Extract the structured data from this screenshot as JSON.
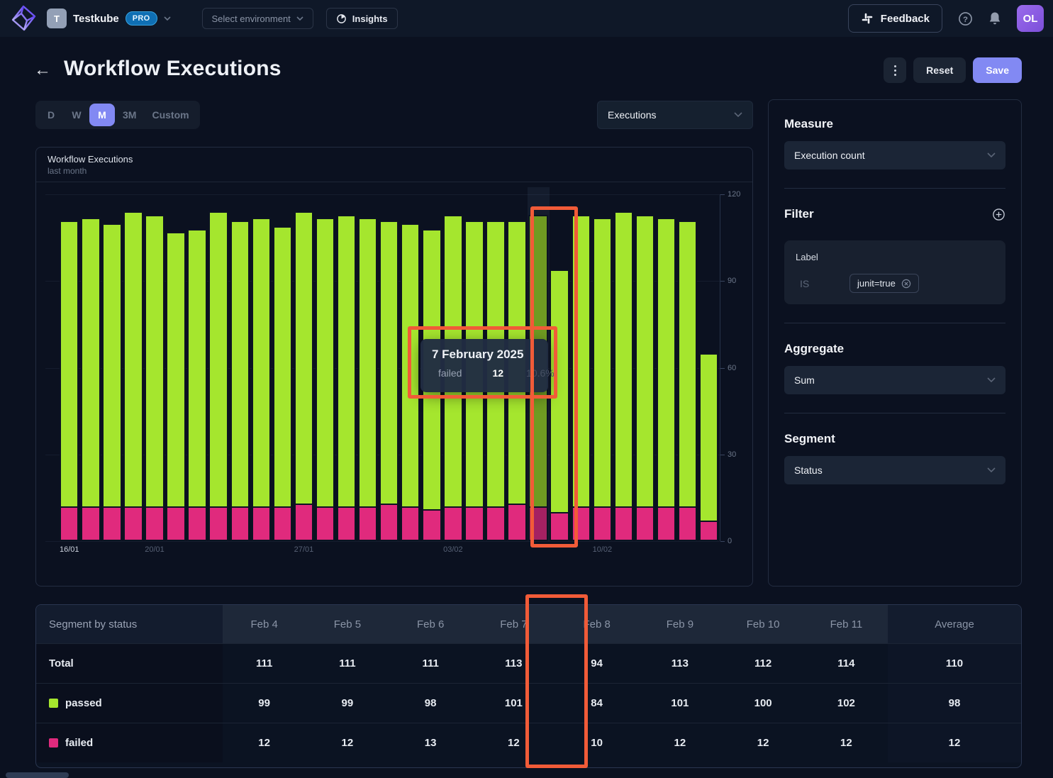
{
  "topbar": {
    "org": {
      "avatar_initial": "T",
      "name": "Testkube",
      "badge": "PRO"
    },
    "env_select": "Select environment",
    "insights": "Insights",
    "feedback": "Feedback",
    "user_initials": "OL"
  },
  "header": {
    "title": "Workflow Executions",
    "reset": "Reset",
    "save": "Save"
  },
  "controls": {
    "ranges": [
      "D",
      "W",
      "M",
      "3M",
      "Custom"
    ],
    "active_range": "M",
    "metric_select": "Executions"
  },
  "chart_panel": {
    "title": "Workflow Executions",
    "subtitle": "last month"
  },
  "chart_data": {
    "type": "bar",
    "stacked": true,
    "title": "Workflow Executions",
    "subtitle": "last month",
    "series_names": [
      "failed",
      "passed"
    ],
    "colors": {
      "passed": "#a5e62e",
      "failed": "#e02a7d",
      "passed_hover": "#6f9b22",
      "failed_hover": "#a52162"
    },
    "ylim": [
      0,
      120
    ],
    "yticks": [
      0,
      30,
      60,
      90,
      120
    ],
    "xticks": [
      {
        "label": "16/01",
        "index": 0
      },
      {
        "label": "20/01",
        "index": 4
      },
      {
        "label": "27/01",
        "index": 11
      },
      {
        "label": "03/02",
        "index": 18
      },
      {
        "label": "10/02",
        "index": 25
      }
    ],
    "highlight_index": 22,
    "bars": [
      {
        "date": "16/01",
        "failed": 12,
        "passed": 99
      },
      {
        "date": "17/01",
        "failed": 12,
        "passed": 100
      },
      {
        "date": "18/01",
        "failed": 12,
        "passed": 98
      },
      {
        "date": "19/01",
        "failed": 12,
        "passed": 102
      },
      {
        "date": "20/01",
        "failed": 12,
        "passed": 101
      },
      {
        "date": "21/01",
        "failed": 12,
        "passed": 95
      },
      {
        "date": "22/01",
        "failed": 12,
        "passed": 96
      },
      {
        "date": "23/01",
        "failed": 12,
        "passed": 102
      },
      {
        "date": "24/01",
        "failed": 12,
        "passed": 99
      },
      {
        "date": "25/01",
        "failed": 12,
        "passed": 100
      },
      {
        "date": "26/01",
        "failed": 12,
        "passed": 97
      },
      {
        "date": "27/01",
        "failed": 13,
        "passed": 101
      },
      {
        "date": "28/01",
        "failed": 12,
        "passed": 100
      },
      {
        "date": "29/01",
        "failed": 12,
        "passed": 101
      },
      {
        "date": "30/01",
        "failed": 12,
        "passed": 100
      },
      {
        "date": "31/01",
        "failed": 13,
        "passed": 98
      },
      {
        "date": "01/02",
        "failed": 12,
        "passed": 98
      },
      {
        "date": "02/02",
        "failed": 11,
        "passed": 97
      },
      {
        "date": "03/02",
        "failed": 12,
        "passed": 101
      },
      {
        "date": "04/02",
        "failed": 12,
        "passed": 99
      },
      {
        "date": "05/02",
        "failed": 12,
        "passed": 99
      },
      {
        "date": "06/02",
        "failed": 13,
        "passed": 98
      },
      {
        "date": "07/02",
        "failed": 12,
        "passed": 101
      },
      {
        "date": "08/02",
        "failed": 10,
        "passed": 84
      },
      {
        "date": "09/02",
        "failed": 12,
        "passed": 101
      },
      {
        "date": "10/02",
        "failed": 12,
        "passed": 100
      },
      {
        "date": "11/02",
        "failed": 12,
        "passed": 102
      },
      {
        "date": "12/02",
        "failed": 12,
        "passed": 101
      },
      {
        "date": "13/02",
        "failed": 12,
        "passed": 100
      },
      {
        "date": "14/02",
        "failed": 12,
        "passed": 99
      },
      {
        "date": "15/02",
        "failed": 7,
        "passed": 58
      }
    ]
  },
  "tooltip": {
    "title": "7 February 2025",
    "series": "failed",
    "value": "12",
    "percent": "10.6%"
  },
  "sidebar": {
    "measure": {
      "label": "Measure",
      "value": "Execution count"
    },
    "filter": {
      "label": "Filter",
      "card_label": "Label",
      "operator": "IS",
      "tag": "junit=true"
    },
    "aggregate": {
      "label": "Aggregate",
      "value": "Sum"
    },
    "segment": {
      "label": "Segment",
      "value": "Status"
    }
  },
  "table": {
    "first_header": "Segment by status",
    "columns": [
      "Feb 4",
      "Feb 5",
      "Feb 6",
      "Feb 7",
      "Feb 8",
      "Feb 9",
      "Feb 10",
      "Feb 11",
      "Average"
    ],
    "rows": [
      {
        "label": "Total",
        "bold": true,
        "swatch": null,
        "values": [
          111,
          111,
          111,
          113,
          94,
          113,
          112,
          114,
          110
        ]
      },
      {
        "label": "passed",
        "bold": false,
        "swatch": "#a5e62e",
        "values": [
          99,
          99,
          98,
          101,
          84,
          101,
          100,
          102,
          98
        ]
      },
      {
        "label": "failed",
        "bold": false,
        "swatch": "#e02a7d",
        "values": [
          12,
          12,
          13,
          12,
          10,
          12,
          12,
          12,
          12
        ]
      }
    ]
  },
  "annotation": {
    "color": "#f15b38"
  },
  "icons": {
    "logo": "testkube-cube-icon",
    "env_chevron": "chevron-down-icon",
    "insights": "pie-chart-icon",
    "feedback": "slack-icon",
    "help": "help-circle-icon",
    "notifications": "bell-icon",
    "filter_add": "circle-plus-icon",
    "tag_remove": "circle-x-icon"
  }
}
